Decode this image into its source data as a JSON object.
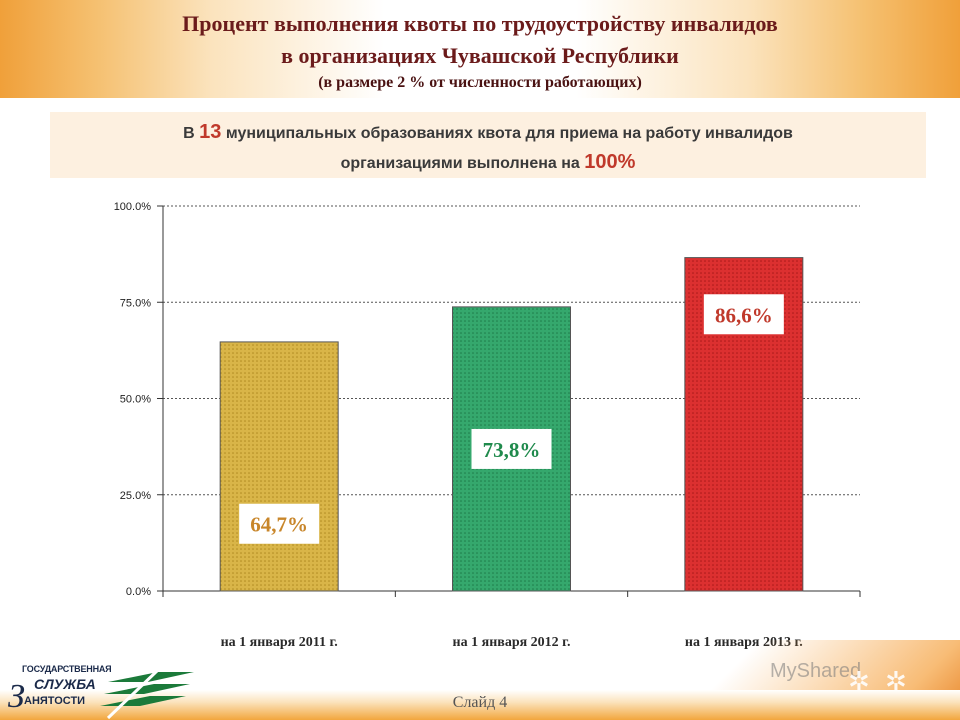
{
  "header": {
    "title_line1": "Процент выполнения квоты по трудоустройству инвалидов",
    "title_line2": "в организациях  Чувашской Республики",
    "title_line3": "(в размере 2 % от численности работающих)"
  },
  "banner": {
    "text_a": "В ",
    "highlight_count": "13",
    "text_b": " муниципальных образованиях квота для приема на работу инвалидов",
    "text_c": "организациями выполнена на ",
    "highlight_percent": "100%"
  },
  "chart_data": {
    "type": "bar",
    "title": "",
    "categories": [
      "на 1 января 2011 г.",
      "на 1 января 2012 г.",
      "на 1 января 2013 г."
    ],
    "values": [
      64.7,
      73.8,
      86.6
    ],
    "value_labels": [
      "64,7%",
      "73,8%",
      "86,6%"
    ],
    "ylim": [
      0,
      100
    ],
    "yticks": [
      0,
      25,
      50,
      75,
      100
    ],
    "ytick_labels": [
      "0.0%",
      "25.0%",
      "50.0%",
      "75.0%",
      "100.0%"
    ],
    "grid": true,
    "colors": [
      "#d4ad3a",
      "#2e9e64",
      "#d42a2a"
    ],
    "label_colors": [
      "#c8862a",
      "#1f8a4c",
      "#c0392b"
    ]
  },
  "footer": {
    "slide_label": "Слайд 4",
    "logo_line1": "ГОСУДАРСТВЕННАЯ",
    "logo_line2": "СЛУЖБА",
    "logo_line3": "АНЯТОСТИ",
    "logo_letter": "З",
    "watermark": "MyShared"
  }
}
